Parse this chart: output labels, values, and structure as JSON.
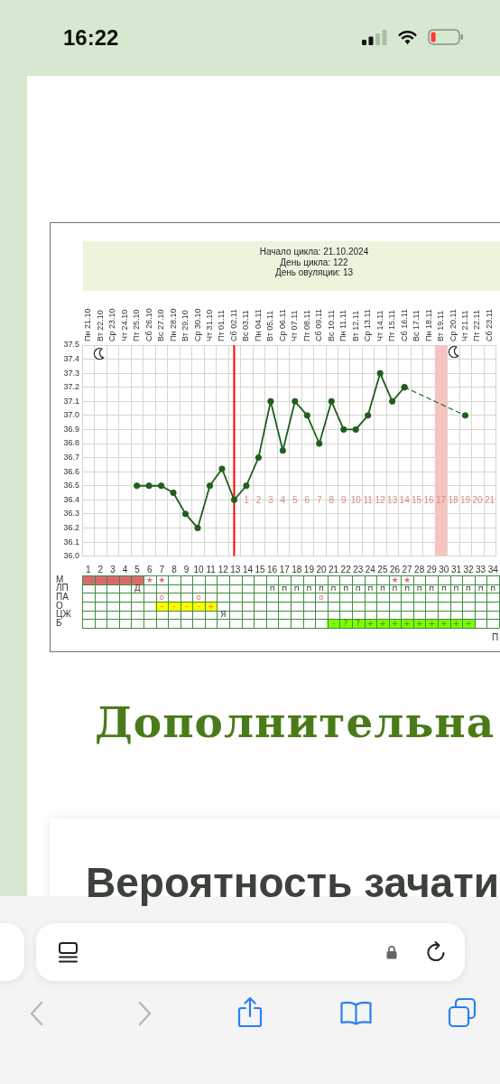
{
  "chart_data": [
    {
      "type": "line",
      "title": "Начало цикла: 21.10.2024",
      "subtitle": "День цикла: 122",
      "annotations": [
        "День овуляции: 13"
      ],
      "categories": [
        "Пн 21.10",
        "Вт 22.10",
        "Ср 23.10",
        "Чт 24.10",
        "Пт 25.10",
        "Сб 26.10",
        "Вс 27.10",
        "Пн 28.10",
        "Вт 29.10",
        "Ср 30.10",
        "Чт 31.10",
        "Пт 01.11",
        "Сб 02.11",
        "Вс 03.11",
        "Пн 04.11",
        "Вт 05.11",
        "Ср 06.11",
        "Чт 07.11",
        "Пт 08.11",
        "Сб 09.11",
        "Вс 10.11",
        "Пн 11.11",
        "Вт 12.11",
        "Ср 13.11",
        "Чт 14.11",
        "Пт 15.11",
        "Сб 16.11",
        "Вс 17.11",
        "Пн 18.11",
        "Вт 19.11",
        "Ср 20.11",
        "Чт 21.11",
        "Пт 22.11",
        "Сб 23.11"
      ],
      "x2lim": [
        -12.5,
        21.5
      ],
      "x2ticks": [
        1,
        2,
        3,
        4,
        5,
        6,
        7,
        8,
        9,
        10,
        11,
        12,
        13,
        14,
        15,
        16,
        17,
        18,
        19,
        20,
        21
      ],
      "ylim": [
        36.0,
        37.5
      ],
      "yticks": [
        {
          "value": 36,
          "label": "36.0"
        },
        36.1,
        36.2,
        36.3,
        36.4,
        36.5,
        36.6,
        36.7,
        36.8,
        36.9,
        {
          "value": 37,
          "label": "37.0"
        },
        37.1,
        37.2,
        37.3,
        37.4,
        37.5
      ],
      "series": [
        {
          "color": "#1e5e1e",
          "values": [
            null,
            null,
            null,
            null,
            36.5,
            36.5,
            36.5,
            36.45,
            36.3,
            36.2,
            36.5,
            36.62,
            36.4,
            36.5,
            36.7,
            37.1,
            36.75,
            37.1,
            37.0,
            36.8,
            37.1,
            36.9,
            36.9,
            37.0,
            37.3,
            37.1,
            37.2,
            null,
            null,
            null,
            null,
            null,
            null,
            null
          ]
        },
        {
          "color": "#1e5e1e",
          "x": [
            "Сб 16.11",
            "Чт 21.11"
          ],
          "values": [
            37.2,
            37.0
          ],
          "line_style": "dashed"
        }
      ],
      "marker": "circle",
      "line_style": "solid",
      "grid": true,
      "ref_lines": [
        {
          "axis": "x",
          "value": "Сб 02.11",
          "color": "#ff0000"
        }
      ],
      "bands": [
        {
          "axis": "x2",
          "from": 16.5,
          "to": 17.5,
          "color": "#f8c3c3"
        }
      ]
    },
    {
      "type": "bar",
      "orientation": "horizontal",
      "categories": [
        "М",
        "ЛП",
        "ПА",
        "О",
        "ЦЖ",
        "Б"
      ],
      "values": [
        5,
        null,
        null,
        5,
        null,
        12
      ],
      "base": [
        0.5,
        null,
        null,
        6.5,
        null,
        20.5
      ],
      "colors": [
        "#d96a6e",
        null,
        null,
        "#ffff00",
        null,
        "#7cfc00"
      ],
      "xlim": [
        0.5,
        34.5
      ],
      "xticks": [
        1,
        2,
        3,
        4,
        5,
        6,
        7,
        8,
        9,
        10,
        11,
        12,
        13,
        14,
        15,
        16,
        17,
        18,
        19,
        20,
        21,
        22,
        23,
        24,
        25,
        26,
        27,
        28,
        29,
        30,
        31,
        32,
        33,
        34
      ]
    },
    {
      "type": "heatmap",
      "categories": [
        null,
        null,
        null,
        null,
        null,
        null,
        null,
        null,
        null,
        null,
        null,
        null,
        null,
        null,
        null,
        null,
        null,
        null,
        null,
        null,
        null,
        null,
        null,
        null,
        null,
        null,
        null,
        null,
        null,
        null,
        null,
        null,
        null,
        null
      ],
      "y_categories": [
        "М",
        "ЛП",
        "ПА",
        "О",
        "ЦЖ",
        "Б"
      ],
      "cells": [
        [
          null,
          null,
          null,
          null,
          null,
          null,
          null,
          null,
          null,
          null,
          null,
          null,
          null,
          null,
          null,
          null,
          null,
          null,
          null,
          null,
          null,
          null,
          null,
          null,
          null,
          null,
          null,
          null,
          null,
          null,
          null,
          null,
          null,
          null
        ],
        [
          null,
          null,
          null,
          null,
          null,
          null,
          null,
          null,
          null,
          null,
          null,
          null,
          null,
          null,
          null,
          null,
          null,
          null,
          null,
          null,
          null,
          null,
          null,
          null,
          null,
          null,
          null,
          null,
          null,
          null,
          null,
          null,
          null,
          null
        ],
        [
          null,
          null,
          null,
          null,
          null,
          null,
          null,
          null,
          null,
          null,
          null,
          null,
          null,
          null,
          null,
          null,
          null,
          null,
          null,
          null,
          null,
          null,
          null,
          null,
          null,
          null,
          null,
          null,
          null,
          null,
          null,
          null,
          null,
          null
        ],
        [
          null,
          null,
          null,
          null,
          null,
          null,
          null,
          null,
          null,
          null,
          null,
          null,
          null,
          null,
          null,
          null,
          null,
          null,
          null,
          null,
          null,
          null,
          null,
          null,
          null,
          null,
          null,
          null,
          null,
          null,
          null,
          null,
          null,
          null
        ],
        [
          null,
          null,
          null,
          null,
          null,
          null,
          null,
          null,
          null,
          null,
          null,
          null,
          null,
          null,
          null,
          null,
          null,
          null,
          null,
          null,
          null,
          null,
          null,
          null,
          null,
          null,
          null,
          null,
          null,
          null,
          null,
          null,
          null,
          null
        ],
        [
          null,
          null,
          null,
          null,
          null,
          null,
          null,
          null,
          null,
          null,
          null,
          null,
          null,
          null,
          null,
          null,
          null,
          null,
          null,
          null,
          null,
          null,
          null,
          null,
          null,
          null,
          null,
          null,
          null,
          null,
          null,
          null,
          null,
          null
        ]
      ],
      "cell_labels": [
        [
          null,
          null,
          null,
          null,
          null,
          "★",
          "★",
          null,
          null,
          null,
          null,
          null,
          null,
          null,
          null,
          null,
          null,
          null,
          null,
          null,
          null,
          null,
          null,
          null,
          null,
          "★",
          "★",
          null,
          null,
          null,
          null,
          null,
          null,
          null
        ],
        [
          null,
          null,
          null,
          null,
          "Д",
          null,
          null,
          null,
          null,
          null,
          null,
          null,
          null,
          null,
          null,
          "п",
          "п",
          "п",
          "п",
          "п",
          "п",
          "п",
          "п",
          "п",
          "п",
          "п",
          "п",
          "п",
          "п",
          "п",
          "п",
          "п",
          "п",
          "п"
        ],
        [
          null,
          null,
          null,
          null,
          null,
          null,
          "о",
          null,
          null,
          "о",
          null,
          null,
          null,
          null,
          null,
          null,
          null,
          null,
          null,
          "о",
          null,
          null,
          null,
          null,
          null,
          null,
          null,
          null,
          null,
          null,
          null,
          null,
          null,
          null
        ],
        [
          null,
          null,
          null,
          null,
          null,
          null,
          "-",
          "-",
          "-",
          "-",
          "+",
          null,
          null,
          null,
          null,
          null,
          null,
          null,
          null,
          null,
          null,
          null,
          null,
          null,
          null,
          null,
          null,
          null,
          null,
          null,
          null,
          null,
          null,
          null
        ],
        [
          null,
          null,
          null,
          null,
          null,
          null,
          null,
          null,
          null,
          null,
          null,
          "Я",
          null,
          null,
          null,
          null,
          null,
          null,
          null,
          null,
          null,
          null,
          null,
          null,
          null,
          null,
          null,
          null,
          null,
          null,
          null,
          null,
          null,
          null
        ],
        [
          null,
          null,
          null,
          null,
          null,
          null,
          null,
          null,
          null,
          null,
          null,
          null,
          null,
          null,
          null,
          null,
          null,
          null,
          null,
          null,
          "-",
          "?",
          "?",
          "+",
          "+",
          "+",
          "+",
          "+",
          "+",
          "+",
          "+",
          "+",
          null,
          null
        ]
      ],
      "grid": true,
      "tick_labels": false,
      "annotations": [
        "П"
      ]
    },
    {
      "type": "other",
      "annotations": [
        "16:22",
        "Дополнительна",
        "Вероятность зачати"
      ]
    }
  ]
}
